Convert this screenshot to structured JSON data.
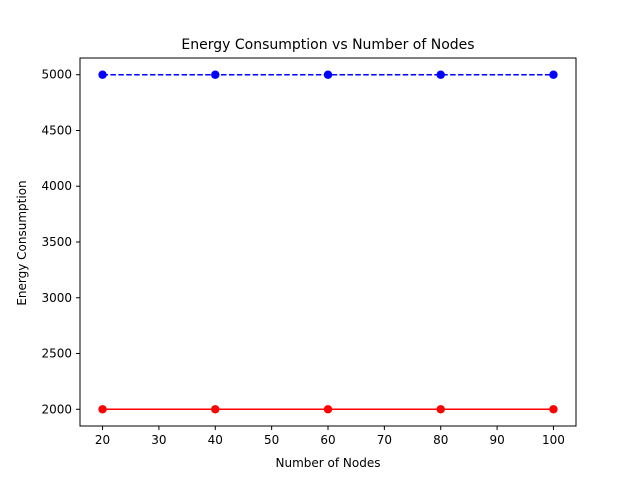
{
  "chart_data": {
    "type": "line",
    "title": "Energy Consumption vs Number of Nodes",
    "xlabel": "Number of Nodes",
    "ylabel": "Energy Consumption",
    "x": [
      20,
      40,
      60,
      80,
      100
    ],
    "xticks": [
      20,
      30,
      40,
      50,
      60,
      70,
      80,
      90,
      100
    ],
    "yticks": [
      2000,
      2500,
      3000,
      3500,
      4000,
      4500,
      5000
    ],
    "xlim": [
      16,
      104
    ],
    "ylim": [
      1850,
      5150
    ],
    "grid": false,
    "series": [
      {
        "name": "series-blue",
        "values": [
          5000,
          5000,
          5000,
          5000,
          5000
        ],
        "color": "#0000ff",
        "linestyle": "dashed",
        "marker": "circle"
      },
      {
        "name": "series-red",
        "values": [
          2000,
          2000,
          2000,
          2000,
          2000
        ],
        "color": "#ff0000",
        "linestyle": "solid",
        "marker": "circle"
      }
    ]
  }
}
